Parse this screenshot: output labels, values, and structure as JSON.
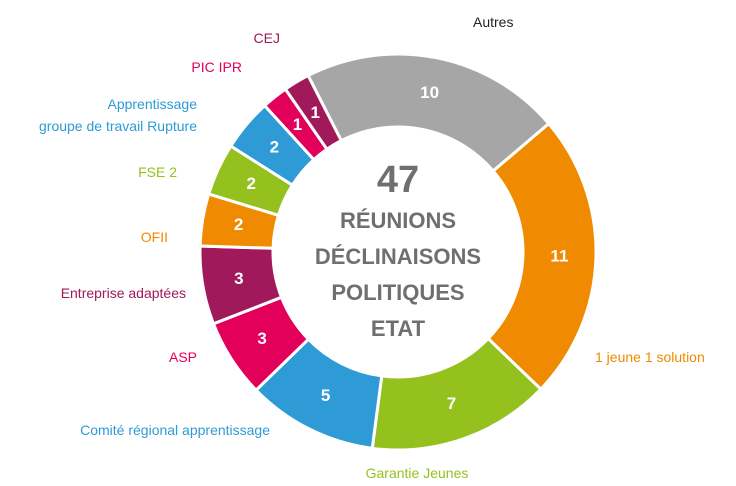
{
  "chart_data": {
    "type": "donut",
    "center_value": "47",
    "center_lines": [
      "RÉUNIONS",
      "DÉCLINAISONS",
      "POLITIQUES",
      "ETAT"
    ],
    "categories": [
      "Autres",
      "1 jeune  1 solution",
      "Garantie Jeunes",
      "Comité régional apprentissage",
      "ASP",
      "Entreprise adaptées",
      "OFII",
      "FSE 2",
      "Apprentissage\ngroupe de travail Rupture",
      "PIC IPR",
      "CEJ"
    ],
    "values": [
      10,
      11,
      7,
      5,
      3,
      3,
      2,
      2,
      2,
      1,
      1
    ],
    "colors": [
      "#a6a6a6",
      "#f08a00",
      "#95c11f",
      "#2e9bd6",
      "#e2005a",
      "#a0195b",
      "#f08a00",
      "#95c11f",
      "#2e9bd6",
      "#e2005a",
      "#a0195b"
    ],
    "label_colors": [
      "#222222",
      "#f08a00",
      "#95c11f",
      "#2e9bd6",
      "#e2005a",
      "#a0195b",
      "#f08a00",
      "#95c11f",
      "#2e9bd6",
      "#e2005a",
      "#a0195b"
    ]
  }
}
